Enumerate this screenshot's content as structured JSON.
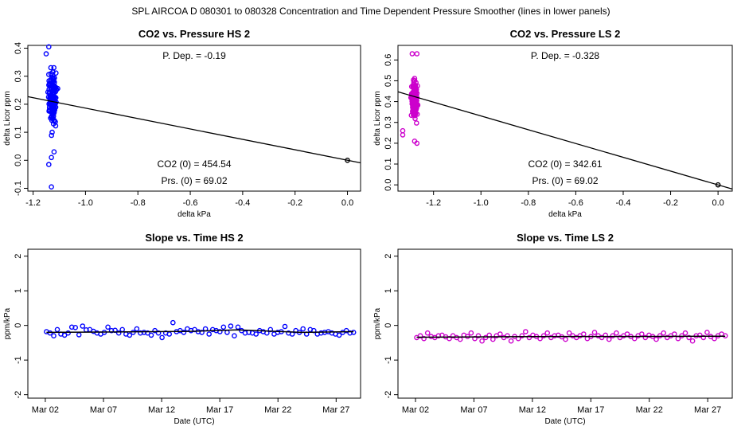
{
  "page": {
    "suptitle": "SPL   AIRCOA D   080301 to 080328   Concentration and Time Dependent Pressure Smoother (lines in lower panels)"
  },
  "colors": {
    "hs": "#0000ff",
    "ls": "#cc00cc",
    "line": "#000000"
  },
  "chart_data": [
    {
      "id": "co2-pressure-hs",
      "type": "scatter",
      "title": "CO2 vs. Pressure HS 2",
      "xlabel": "delta kPa",
      "ylabel": "delta Licor ppm",
      "xlim": [
        -1.22,
        0.05
      ],
      "ylim": [
        -0.11,
        0.41
      ],
      "xticks": [
        -1.2,
        -1.0,
        -0.8,
        -0.6,
        -0.4,
        -0.2,
        0.0
      ],
      "xtick_labels": [
        "-1.2",
        "-1.0",
        "-0.8",
        "-0.6",
        "-0.4",
        "-0.2",
        "0.0"
      ],
      "yticks": [
        -0.1,
        0.0,
        0.1,
        0.2,
        0.3,
        0.4
      ],
      "ytick_labels": [
        "-0.1",
        "0.0",
        "0.1",
        "0.2",
        "0.3",
        "0.4"
      ],
      "cluster": {
        "x_center": -1.125,
        "x_spread": 0.025,
        "y_min": -0.1,
        "y_max": 0.405,
        "y_center": 0.22,
        "n": 170,
        "outliers": [
          [
            -1.13,
            -0.095
          ],
          [
            -1.14,
            -0.015
          ],
          [
            -1.13,
            0.01
          ],
          [
            -1.14,
            0.405
          ],
          [
            -1.15,
            0.38
          ],
          [
            -1.12,
            0.03
          ]
        ]
      },
      "fit_line": {
        "x": [
          -1.22,
          0.05
        ],
        "y": [
          0.227,
          -0.009
        ]
      },
      "reference_point": [
        0.0,
        0.0
      ],
      "annotation_pdep": "P. Dep. =  -0.19",
      "annotation_co2": "CO2 (0) =  454.54",
      "annotation_prs": "Prs. (0) =  69.02",
      "color": "#0000ff"
    },
    {
      "id": "co2-pressure-ls",
      "type": "scatter",
      "title": "CO2 vs. Pressure LS 2",
      "xlabel": "delta kPa",
      "ylabel": "delta Licor ppm",
      "xlim": [
        -1.35,
        0.06
      ],
      "ylim": [
        -0.03,
        0.67
      ],
      "xticks": [
        -1.2,
        -1.0,
        -0.8,
        -0.6,
        -0.4,
        -0.2,
        0.0
      ],
      "xtick_labels": [
        "-1.2",
        "-1.0",
        "-0.8",
        "-0.6",
        "-0.4",
        "-0.2",
        "0.0"
      ],
      "yticks": [
        0.0,
        0.1,
        0.2,
        0.3,
        0.4,
        0.5,
        0.6
      ],
      "ytick_labels": [
        "0.0",
        "0.1",
        "0.2",
        "0.3",
        "0.4",
        "0.5",
        "0.6"
      ],
      "cluster": {
        "x_center": -1.28,
        "x_spread": 0.02,
        "y_min": 0.2,
        "y_max": 0.635,
        "y_center": 0.41,
        "n": 230,
        "outliers": [
          [
            -1.29,
            0.63
          ],
          [
            -1.27,
            0.63
          ],
          [
            -1.33,
            0.26
          ],
          [
            -1.33,
            0.24
          ],
          [
            -1.28,
            0.21
          ],
          [
            -1.27,
            0.2
          ]
        ]
      },
      "fit_line": {
        "x": [
          -1.35,
          0.06
        ],
        "y": [
          0.447,
          -0.02
        ]
      },
      "reference_point": [
        0.0,
        0.0
      ],
      "annotation_pdep": "P. Dep. =  -0.328",
      "annotation_co2": "CO2 (0) =  342.61",
      "annotation_prs": "Prs. (0) =  69.02",
      "color": "#cc00cc"
    },
    {
      "id": "slope-time-hs",
      "type": "scatter",
      "title": "Slope vs. Time HS 2",
      "xlabel": "Date (UTC)",
      "ylabel": "ppm/kPa",
      "xlim": [
        0.0,
        28.6
      ],
      "ylim": [
        -2.1,
        2.2
      ],
      "xticks": [
        1.5,
        6.5,
        11.5,
        16.5,
        21.5,
        26.5
      ],
      "xtick_labels": [
        "Mar 02",
        "Mar 07",
        "Mar 12",
        "Mar 17",
        "Mar 22",
        "Mar 27"
      ],
      "yticks": [
        -2,
        -1,
        0,
        1,
        2
      ],
      "ytick_labels": [
        "-2",
        "-1",
        "0",
        "1",
        "2"
      ],
      "series_x_range": [
        1.6,
        28.0
      ],
      "values": [
        -0.18,
        -0.22,
        -0.3,
        -0.12,
        -0.25,
        -0.28,
        -0.22,
        -0.05,
        -0.06,
        -0.27,
        -0.02,
        -0.13,
        -0.12,
        -0.17,
        -0.22,
        -0.25,
        -0.2,
        -0.05,
        -0.15,
        -0.14,
        -0.22,
        -0.12,
        -0.25,
        -0.28,
        -0.2,
        -0.1,
        -0.22,
        -0.2,
        -0.22,
        -0.28,
        -0.15,
        -0.22,
        -0.35,
        -0.22,
        -0.25,
        0.08,
        -0.18,
        -0.15,
        -0.2,
        -0.1,
        -0.15,
        -0.12,
        -0.18,
        -0.2,
        -0.1,
        -0.25,
        -0.12,
        -0.15,
        -0.18,
        -0.05,
        -0.2,
        -0.02,
        -0.3,
        -0.05,
        -0.15,
        -0.22,
        -0.2,
        -0.22,
        -0.25,
        -0.15,
        -0.18,
        -0.22,
        -0.12,
        -0.25,
        -0.2,
        -0.18,
        -0.03,
        -0.22,
        -0.25,
        -0.15,
        -0.2,
        -0.1,
        -0.25,
        -0.12,
        -0.15,
        -0.25,
        -0.22,
        -0.2,
        -0.18,
        -0.22,
        -0.25,
        -0.28,
        -0.2,
        -0.15,
        -0.22,
        -0.2
      ],
      "trend": {
        "x": [
          1.6,
          7.5,
          14.0,
          18.0,
          23.5,
          28.0
        ],
        "y": [
          -0.2,
          -0.19,
          -0.17,
          -0.13,
          -0.2,
          -0.18
        ]
      },
      "color": "#0000ff"
    },
    {
      "id": "slope-time-ls",
      "type": "scatter",
      "title": "Slope vs. Time LS 2",
      "xlabel": "Date (UTC)",
      "ylabel": "ppm/kPa",
      "xlim": [
        0.0,
        28.6
      ],
      "ylim": [
        -2.1,
        2.2
      ],
      "xticks": [
        1.5,
        6.5,
        11.5,
        16.5,
        21.5,
        26.5
      ],
      "xtick_labels": [
        "Mar 02",
        "Mar 07",
        "Mar 12",
        "Mar 17",
        "Mar 22",
        "Mar 27"
      ],
      "yticks": [
        -2,
        -1,
        0,
        1,
        2
      ],
      "ytick_labels": [
        "-2",
        "-1",
        "0",
        "1",
        "2"
      ],
      "series_x_range": [
        1.6,
        28.0
      ],
      "values": [
        -0.35,
        -0.3,
        -0.38,
        -0.22,
        -0.32,
        -0.35,
        -0.3,
        -0.28,
        -0.33,
        -0.38,
        -0.3,
        -0.35,
        -0.4,
        -0.28,
        -0.32,
        -0.22,
        -0.38,
        -0.3,
        -0.45,
        -0.35,
        -0.28,
        -0.4,
        -0.3,
        -0.25,
        -0.35,
        -0.3,
        -0.45,
        -0.32,
        -0.38,
        -0.3,
        -0.18,
        -0.35,
        -0.28,
        -0.32,
        -0.38,
        -0.3,
        -0.22,
        -0.35,
        -0.3,
        -0.28,
        -0.33,
        -0.4,
        -0.22,
        -0.3,
        -0.35,
        -0.3,
        -0.25,
        -0.38,
        -0.32,
        -0.2,
        -0.3,
        -0.35,
        -0.28,
        -0.4,
        -0.3,
        -0.22,
        -0.35,
        -0.3,
        -0.25,
        -0.32,
        -0.38,
        -0.3,
        -0.25,
        -0.35,
        -0.28,
        -0.32,
        -0.4,
        -0.3,
        -0.22,
        -0.35,
        -0.3,
        -0.25,
        -0.38,
        -0.3,
        -0.22,
        -0.35,
        -0.45,
        -0.3,
        -0.28,
        -0.35,
        -0.2,
        -0.32,
        -0.38,
        -0.3,
        -0.25,
        -0.3
      ],
      "trend": {
        "x": [
          1.6,
          8.0,
          14.0,
          20.0,
          28.0
        ],
        "y": [
          -0.34,
          -0.33,
          -0.32,
          -0.32,
          -0.31
        ]
      },
      "color": "#cc00cc"
    }
  ]
}
